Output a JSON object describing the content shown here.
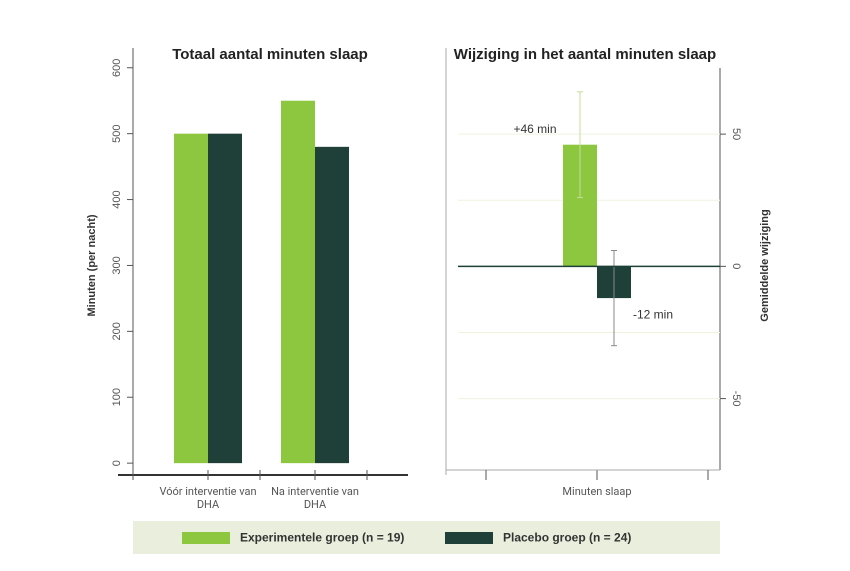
{
  "chart_data": [
    {
      "type": "bar",
      "title": "Totaal aantal minuten slaap",
      "ylabel": "Minuten (per nacht)",
      "categories": [
        "Vóór interventie van DHA",
        "Na interventie van DHA"
      ],
      "series": [
        {
          "name": "Experimentele groep (n = 19)",
          "color": "#8dc63f",
          "values": [
            500,
            550
          ]
        },
        {
          "name": "Placebo groep (n = 24)",
          "color": "#1e4038",
          "values": [
            500,
            480
          ]
        }
      ],
      "ylim": [
        -18,
        630
      ],
      "yticks": [
        0,
        100,
        200,
        300,
        400,
        500,
        600
      ],
      "grid": false
    },
    {
      "type": "bar",
      "title": "Wijziging in het aantal minuten slaap",
      "ylabel": "Gemiddelde wijziging",
      "categories": [
        "Minuten slaap"
      ],
      "series": [
        {
          "color": "#8dc63f",
          "values": [
            46
          ],
          "errors": [
            20
          ],
          "value_labels": [
            "+46 min"
          ]
        },
        {
          "color": "#1e4038",
          "values": [
            -12
          ],
          "errors": [
            18
          ],
          "value_labels": [
            "-12 min"
          ]
        }
      ],
      "ylim": [
        -77,
        75
      ],
      "yticks": [
        -50,
        0,
        50
      ],
      "yminor": [
        -25,
        25
      ],
      "grid": true
    }
  ]
}
